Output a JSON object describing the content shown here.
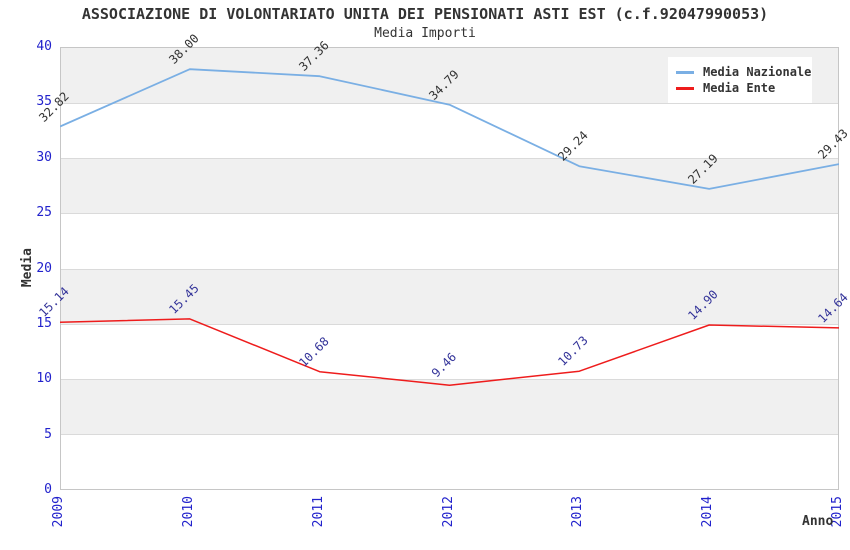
{
  "chart_data": {
    "type": "line",
    "title": "ASSOCIAZIONE DI VOLONTARIATO UNITA DEI PENSIONATI ASTI EST (c.f.92047990053)",
    "subtitle": "Media Importi",
    "xlabel": "Anno",
    "ylabel": "Media",
    "categories": [
      "2009",
      "2010",
      "2011",
      "2012",
      "2013",
      "2014",
      "2015"
    ],
    "series": [
      {
        "name": "Media Nazionale",
        "color": "#7aafe4",
        "label_color": "#333333",
        "values": [
          32.82,
          38.0,
          37.36,
          34.79,
          29.24,
          27.19,
          29.43
        ],
        "labels": [
          "32.82",
          "38.00",
          "37.36",
          "34.79",
          "29.24",
          "27.19",
          "29.43"
        ]
      },
      {
        "name": "Media Ente",
        "color": "#ee1c1c",
        "label_color": "#333399",
        "values": [
          15.14,
          15.45,
          10.68,
          9.46,
          10.73,
          14.9,
          14.64
        ],
        "labels": [
          "15.14",
          "15.45",
          "10.68",
          "9.46",
          "10.73",
          "14.90",
          "14.64"
        ]
      }
    ],
    "ylim": [
      0,
      40
    ],
    "ytick_step": 5,
    "yticks": [
      "0",
      "5",
      "10",
      "15",
      "20",
      "25",
      "30",
      "35",
      "40"
    ],
    "grid": "horizontal-bands-alternating",
    "legend_position": "top-right",
    "colors": {
      "tick_label": "#2222cc",
      "axis_text": "#333333",
      "band_gray": "#f0f0f0",
      "band_white": "#ffffff",
      "grid_line": "#dadada",
      "plot_border": "#c6c6c6",
      "background": "#ffffff"
    }
  }
}
